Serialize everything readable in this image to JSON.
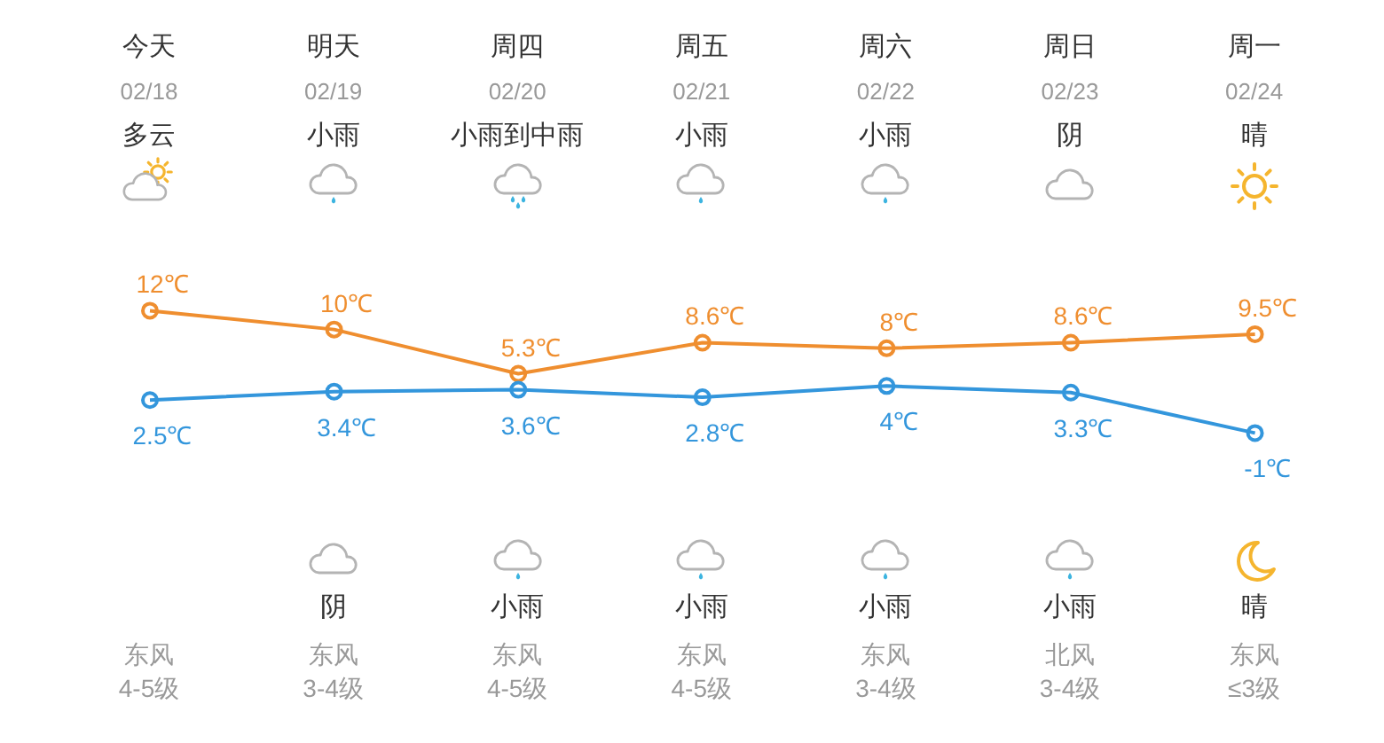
{
  "chart_data": {
    "type": "line",
    "categories": [
      "今天",
      "明天",
      "周四",
      "周五",
      "周六",
      "周日",
      "周一"
    ],
    "series": [
      {
        "color": "#ef8e2f",
        "values": [
          12,
          10,
          5.3,
          8.6,
          8,
          8.6,
          9.5
        ],
        "value_labels": [
          "12℃",
          "10℃",
          "5.3℃",
          "8.6℃",
          "8℃",
          "8.6℃",
          "9.5℃"
        ]
      },
      {
        "color": "#3396dc",
        "values": [
          2.5,
          3.4,
          3.6,
          2.8,
          4,
          3.3,
          -1
        ],
        "value_labels": [
          "2.5℃",
          "3.4℃",
          "3.6℃",
          "2.8℃",
          "4℃",
          "3.3℃",
          "-1℃"
        ]
      }
    ],
    "marker": "circle",
    "line_style": "solid",
    "annotations": [
      "02/18",
      "02/19",
      "02/20",
      "02/21",
      "02/22",
      "02/23",
      "02/24",
      "多云",
      "小雨",
      "小雨到中雨",
      "小雨",
      "小雨",
      "阴",
      "晴",
      "阴",
      "小雨",
      "小雨",
      "小雨",
      "小雨",
      "晴",
      "东风",
      "东风",
      "东风",
      "东风",
      "东风",
      "北风",
      "东风",
      "4-5级",
      "3-4级",
      "4-5级",
      "4-5级",
      "3-4级",
      "3-4级",
      "≤3级"
    ]
  }
}
